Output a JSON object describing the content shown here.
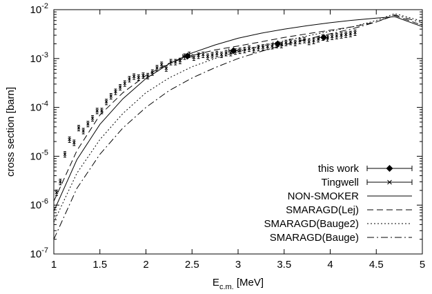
{
  "chart_data": {
    "type": "scatter",
    "xlabel_main": "E",
    "xlabel_sub": "c.m.",
    "xlabel_unit": " [MeV]",
    "ylabel": "cross section [barn]",
    "xlim": [
      1,
      5
    ],
    "ylim": [
      1e-07,
      0.01
    ],
    "y_scale": "log",
    "legend_position": "bottom-right",
    "x_ticks": [
      {
        "value": 1,
        "label": "1"
      },
      {
        "value": 1.5,
        "label": "1.5"
      },
      {
        "value": 2,
        "label": "2"
      },
      {
        "value": 2.5,
        "label": "2.5"
      },
      {
        "value": 3,
        "label": "3"
      },
      {
        "value": 3.5,
        "label": "3.5"
      },
      {
        "value": 4,
        "label": "4"
      },
      {
        "value": 4.5,
        "label": "4.5"
      },
      {
        "value": 5,
        "label": "5"
      }
    ],
    "y_ticks": [
      {
        "exp": -7,
        "mantissa": "10",
        "power": "-7"
      },
      {
        "exp": -6,
        "mantissa": "10",
        "power": "-6"
      },
      {
        "exp": -5,
        "mantissa": "10",
        "power": "-5"
      },
      {
        "exp": -4,
        "mantissa": "10",
        "power": "-4"
      },
      {
        "exp": -3,
        "mantissa": "10",
        "power": "-3"
      },
      {
        "exp": -2,
        "mantissa": "10",
        "power": "-2"
      }
    ],
    "series": [
      {
        "name": "this work",
        "kind": "points",
        "marker": "diamond",
        "x": [
          2.45,
          2.95,
          3.43,
          3.93
        ],
        "y": [
          0.00112,
          0.00145,
          0.002,
          0.0027
        ],
        "xerr": [
          0.05,
          0.05,
          0.05,
          0.05
        ]
      },
      {
        "name": "Tingwell",
        "kind": "points",
        "marker": "cross",
        "x": [
          1.03,
          1.07,
          1.12,
          1.17,
          1.22,
          1.27,
          1.32,
          1.37,
          1.42,
          1.47,
          1.52,
          1.57,
          1.62,
          1.67,
          1.72,
          1.77,
          1.82,
          1.87,
          1.92,
          1.97,
          2.02,
          2.07,
          2.12,
          2.17,
          2.22,
          2.27,
          2.32,
          2.37,
          2.42,
          2.47,
          2.52,
          2.57,
          2.62,
          2.67,
          2.72,
          2.77,
          2.82,
          2.87,
          2.92,
          2.97,
          3.02,
          3.07,
          3.12,
          3.17,
          3.22,
          3.27,
          3.32,
          3.37,
          3.42,
          3.47,
          3.52,
          3.57,
          3.62,
          3.67,
          3.72,
          3.77,
          3.82,
          3.87,
          3.92,
          3.97,
          4.02,
          4.07,
          4.12,
          4.17,
          4.22,
          4.27
        ],
        "y": [
          1.8e-06,
          3e-06,
          1.1e-05,
          2.2e-05,
          1.9e-05,
          3.8e-05,
          3.3e-05,
          4.6e-05,
          6e-05,
          8.5e-05,
          8.5e-05,
          0.00013,
          0.00017,
          0.00021,
          0.00026,
          0.00031,
          0.00038,
          0.00043,
          0.00041,
          0.00045,
          0.00044,
          0.00052,
          0.00064,
          0.00075,
          0.00063,
          0.00085,
          0.00085,
          0.0009,
          0.0011,
          0.0012,
          0.00105,
          0.00115,
          0.0012,
          0.0011,
          0.00118,
          0.00125,
          0.0012,
          0.0013,
          0.0013,
          0.0014,
          0.00145,
          0.0015,
          0.0016,
          0.0015,
          0.00165,
          0.0017,
          0.00175,
          0.0018,
          0.0019,
          0.0019,
          0.0021,
          0.0022,
          0.0021,
          0.0023,
          0.0024,
          0.0022,
          0.0023,
          0.0025,
          0.0027,
          0.0026,
          0.0028,
          0.0029,
          0.003,
          0.0031,
          0.0032,
          0.0034
        ],
        "yerr_frac": 0.13
      },
      {
        "name": "NON-SMOKER",
        "kind": "line",
        "dash": "solid",
        "x": [
          1.0,
          1.25,
          1.5,
          1.75,
          2.0,
          2.25,
          2.5,
          2.75,
          3.0,
          3.25,
          3.5,
          3.75,
          4.0,
          4.25,
          4.5,
          4.7,
          5.0
        ],
        "y": [
          7.5e-07,
          8.5e-06,
          4.5e-05,
          0.00015,
          0.00039,
          0.00078,
          0.0013,
          0.0019,
          0.0026,
          0.0033,
          0.004,
          0.0047,
          0.0054,
          0.0061,
          0.0067,
          0.0072,
          0.0045
        ]
      },
      {
        "name": "SMARAGD(Lej)",
        "kind": "line",
        "dash": "dashed",
        "x": [
          1.0,
          1.25,
          1.5,
          1.75,
          2.0,
          2.25,
          2.5,
          2.75,
          3.0,
          3.25,
          3.5,
          3.75,
          4.0,
          4.25,
          4.5,
          4.7,
          5.0
        ],
        "y": [
          1.2e-06,
          1.3e-05,
          7e-05,
          0.0002,
          0.00045,
          0.0008,
          0.00115,
          0.0015,
          0.0018,
          0.0022,
          0.0027,
          0.0032,
          0.0038,
          0.0045,
          0.0056,
          0.0076,
          0.0048
        ]
      },
      {
        "name": "SMARAGD(Bauge2)",
        "kind": "line",
        "dash": "dotted",
        "x": [
          1.0,
          1.25,
          1.5,
          1.75,
          2.0,
          2.25,
          2.5,
          2.75,
          3.0,
          3.25,
          3.5,
          3.75,
          4.0,
          4.25,
          4.5,
          4.7,
          5.0
        ],
        "y": [
          4.5e-07,
          4.5e-06,
          2.2e-05,
          7.5e-05,
          0.0002,
          0.0004,
          0.00068,
          0.001,
          0.0014,
          0.0018,
          0.0023,
          0.0029,
          0.0036,
          0.0045,
          0.006,
          0.0083,
          0.0058
        ]
      },
      {
        "name": "SMARAGD(Bauge)",
        "kind": "line",
        "dash": "dashdot",
        "x": [
          1.0,
          1.25,
          1.5,
          1.75,
          2.0,
          2.25,
          2.5,
          2.75,
          3.0,
          3.25,
          3.5,
          3.75,
          4.0,
          4.25,
          4.5,
          4.7,
          5.0
        ],
        "y": [
          2e-07,
          2.2e-06,
          1.1e-05,
          3.8e-05,
          0.0001,
          0.00022,
          0.0004,
          0.00065,
          0.001,
          0.0014,
          0.0019,
          0.0025,
          0.0032,
          0.0041,
          0.0056,
          0.0078,
          0.0054
        ]
      }
    ]
  }
}
